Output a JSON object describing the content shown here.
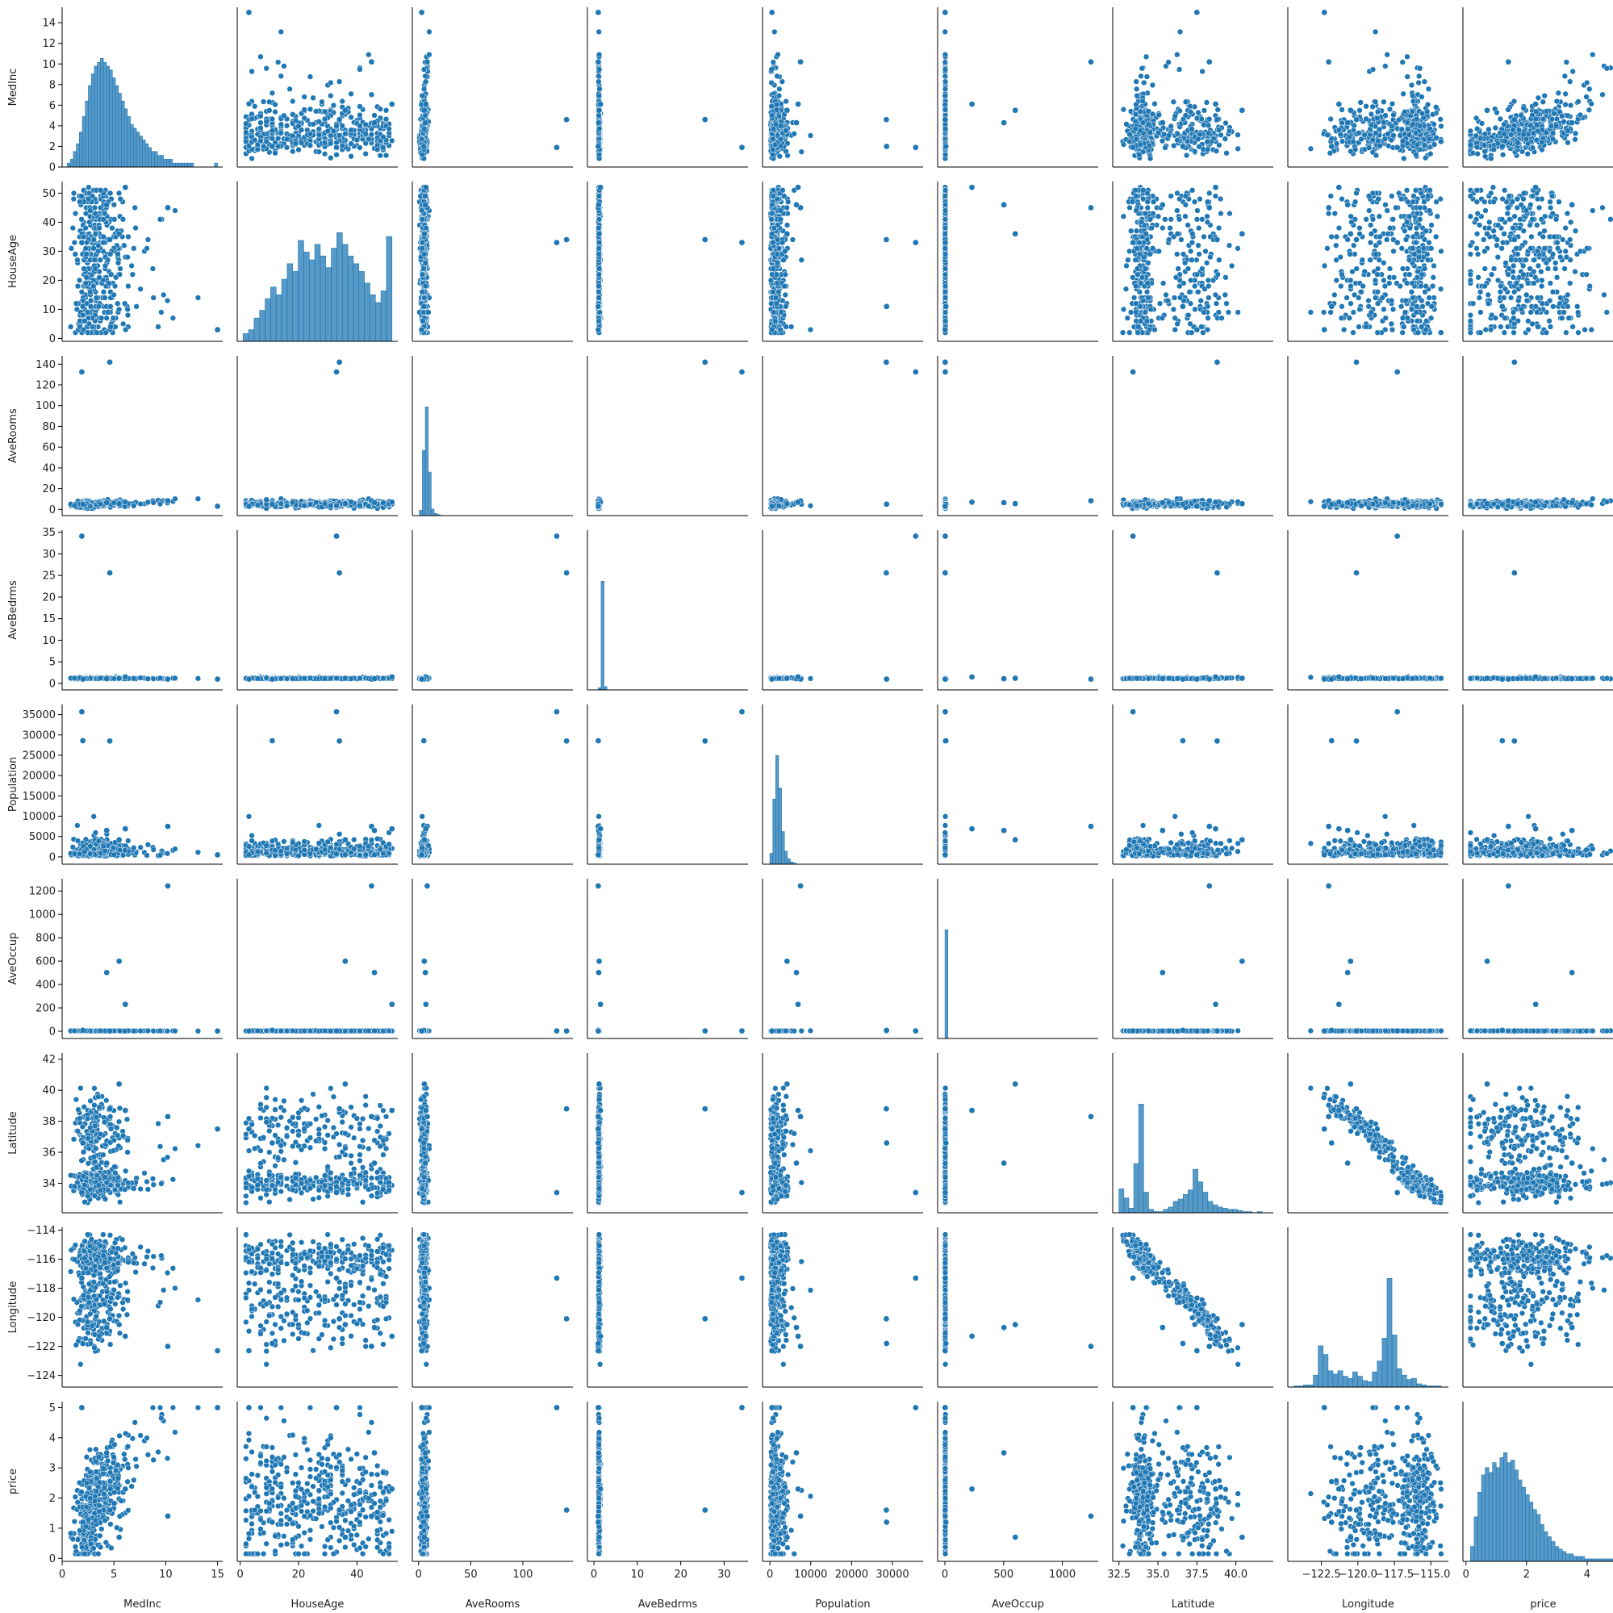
{
  "chart_data": {
    "type": "pairplot",
    "variables": [
      "MedInc",
      "HouseAge",
      "AveRooms",
      "AveBedrms",
      "Population",
      "AveOccup",
      "Latitude",
      "Longitude",
      "price"
    ],
    "marker_color": "#1f77b4",
    "diagonal": "histogram",
    "off_diagonal": "scatter",
    "grid": false,
    "axes": {
      "MedInc": {
        "range": [
          0,
          15.5
        ],
        "ticks": [
          0,
          2,
          4,
          6,
          8,
          10,
          12,
          14
        ],
        "x_ticks": [
          0,
          5,
          10,
          15
        ]
      },
      "HouseAge": {
        "range": [
          -1,
          54
        ],
        "ticks": [
          0,
          10,
          20,
          30,
          40,
          50
        ],
        "x_ticks": [
          0,
          20,
          40
        ]
      },
      "AveRooms": {
        "range": [
          -6,
          148
        ],
        "ticks": [
          0,
          20,
          40,
          60,
          80,
          100,
          120,
          140
        ],
        "x_ticks": [
          0,
          50,
          100
        ]
      },
      "AveBedrms": {
        "range": [
          -1.5,
          35.5
        ],
        "ticks": [
          0,
          5,
          10,
          15,
          20,
          25,
          30,
          35
        ],
        "x_ticks": [
          0,
          10,
          20,
          30
        ]
      },
      "Population": {
        "range": [
          -1800,
          37500
        ],
        "ticks": [
          0,
          5000,
          10000,
          15000,
          20000,
          25000,
          30000,
          35000
        ],
        "x_ticks": [
          0,
          10000,
          20000,
          30000
        ]
      },
      "AveOccup": {
        "range": [
          -62,
          1305
        ],
        "ticks": [
          0,
          200,
          400,
          600,
          800,
          1000,
          1200
        ],
        "x_ticks": [
          0,
          500,
          1000
        ]
      },
      "Latitude": {
        "range": [
          32.1,
          42.4
        ],
        "ticks": [
          34,
          36,
          38,
          40,
          42
        ],
        "x_ticks": [
          32.5,
          35.0,
          37.5,
          40.0
        ]
      },
      "Longitude": {
        "range": [
          -124.8,
          -113.8
        ],
        "ticks": [
          -124,
          -122,
          -120,
          -118,
          -116,
          -114
        ],
        "x_ticks": [
          -122.5,
          -120.0,
          -117.5,
          -115.0
        ]
      },
      "price": {
        "range": [
          -0.1,
          5.2
        ],
        "ticks": [
          0,
          1,
          2,
          3,
          4,
          5
        ],
        "x_ticks": [
          0,
          2,
          4
        ]
      }
    },
    "y_tick_labels": {
      "MedInc": [
        "0",
        "2",
        "4",
        "6",
        "8",
        "10",
        "12",
        "14"
      ],
      "HouseAge": [
        "0",
        "10",
        "20",
        "30",
        "40",
        "50"
      ],
      "AveRooms": [
        "0",
        "20",
        "40",
        "60",
        "80",
        "100",
        "120",
        "140"
      ],
      "AveBedrms": [
        "0",
        "5",
        "10",
        "15",
        "20",
        "25",
        "30",
        "35"
      ],
      "Population": [
        "0",
        "5000",
        "10000",
        "15000",
        "20000",
        "25000",
        "30000",
        "35000"
      ],
      "AveOccup": [
        "0",
        "200",
        "400",
        "600",
        "800",
        "1000",
        "1200"
      ],
      "Latitude": [
        "34",
        "36",
        "38",
        "40",
        "42"
      ],
      "Longitude": [
        "−124",
        "−122",
        "−120",
        "−118",
        "−116",
        "−114"
      ],
      "price": [
        "0",
        "1",
        "2",
        "3",
        "4",
        "5"
      ]
    },
    "x_tick_labels": {
      "MedInc": [
        "0",
        "5",
        "10",
        "15"
      ],
      "HouseAge": [
        "0",
        "20",
        "40"
      ],
      "AveRooms": [
        "0",
        "50",
        "100"
      ],
      "AveBedrms": [
        "0",
        "10",
        "20",
        "30"
      ],
      "Population": [
        "0",
        "10000",
        "20000",
        "30000"
      ],
      "AveOccup": [
        "0",
        "500",
        "1000"
      ],
      "Latitude": [
        "32.5",
        "35.0",
        "37.5",
        "40.0"
      ],
      "Longitude": [
        "−122.5",
        "−120.0",
        "−117.5",
        "−115.0"
      ],
      "price": [
        "0",
        "2",
        "4"
      ]
    },
    "histograms": {
      "MedInc": {
        "bin_start": 0.5,
        "bin_end": 15.0,
        "counts": [
          1,
          2,
          4,
          6,
          9,
          13,
          17,
          21,
          24,
          26,
          27,
          28,
          27,
          26,
          25,
          23,
          21,
          19,
          17,
          15,
          13,
          11,
          10,
          9,
          8,
          7,
          6,
          5,
          4,
          4,
          3,
          3,
          2,
          2,
          2,
          1,
          1,
          1,
          1,
          1,
          1,
          1,
          0,
          0,
          0,
          0,
          0,
          0,
          0,
          1
        ]
      },
      "HouseAge": {
        "bin_start": 1,
        "bin_end": 52,
        "counts": [
          2,
          3,
          6,
          8,
          11,
          14,
          12,
          16,
          20,
          18,
          26,
          23,
          21,
          25,
          22,
          19,
          24,
          28,
          25,
          22,
          20,
          18,
          15,
          12,
          10,
          13,
          27
        ]
      },
      "AveRooms": {
        "bin_start": 0.8,
        "bin_end": 142,
        "counts": [
          5,
          60,
          100,
          40,
          6,
          2,
          1,
          0,
          0,
          0,
          0,
          0,
          0,
          0,
          0,
          0,
          0,
          0,
          0,
          0,
          0,
          0,
          0,
          0,
          0,
          0,
          0,
          0,
          0,
          0,
          0,
          0,
          0,
          0,
          0,
          0,
          0,
          0,
          0,
          0,
          0,
          0,
          0,
          0,
          0,
          0,
          0,
          0,
          0,
          0
        ]
      },
      "AveBedrms": {
        "bin_start": 0.3,
        "bin_end": 34.1,
        "counts": [
          0,
          2,
          100,
          3,
          0,
          0,
          0,
          0,
          0,
          0,
          0,
          0,
          0,
          0,
          0,
          0,
          0,
          0,
          0,
          0,
          0,
          0,
          0,
          0,
          0,
          0,
          0,
          0,
          0,
          0,
          0,
          0,
          0,
          0,
          0,
          0,
          0,
          0,
          0,
          0,
          0,
          0,
          0,
          0,
          0,
          0,
          0,
          0,
          0,
          0
        ]
      },
      "Population": {
        "bin_start": 3,
        "bin_end": 35682,
        "counts": [
          10,
          60,
          100,
          70,
          30,
          12,
          5,
          2,
          1,
          0,
          0,
          0,
          0,
          0,
          0,
          0,
          0,
          0,
          0,
          0,
          0,
          0,
          0,
          0,
          0,
          0,
          0,
          0,
          0,
          0,
          0,
          0,
          0,
          0,
          0,
          0,
          0,
          0,
          0,
          0,
          0,
          0,
          0,
          0,
          0,
          0,
          0,
          0,
          0,
          0
        ]
      },
      "AveOccup": {
        "bin_start": 0.7,
        "bin_end": 1243,
        "counts": [
          100,
          0,
          0,
          0,
          0,
          0,
          0,
          0,
          0,
          0,
          0,
          0,
          0,
          0,
          0,
          0,
          0,
          0,
          0,
          0,
          0,
          0,
          0,
          0,
          0,
          0,
          0,
          0,
          0,
          0,
          0,
          0,
          0,
          0,
          0,
          0,
          0,
          0,
          0,
          0,
          0,
          0,
          0,
          0,
          0,
          0,
          0,
          0,
          0,
          0
        ]
      },
      "Latitude": {
        "bin_start": 32.5,
        "bin_end": 42.0,
        "counts": [
          21,
          13,
          4,
          43,
          95,
          18,
          3,
          1,
          1,
          3,
          5,
          10,
          12,
          16,
          20,
          38,
          27,
          18,
          10,
          7,
          5,
          4,
          3,
          3,
          2,
          1,
          1,
          0,
          1,
          0
        ]
      },
      "Longitude": {
        "bin_start": -124.4,
        "bin_end": -114.3,
        "counts": [
          1,
          1,
          2,
          2,
          11,
          38,
          30,
          15,
          12,
          15,
          10,
          8,
          14,
          10,
          6,
          5,
          14,
          24,
          45,
          100,
          48,
          17,
          11,
          7,
          8,
          3,
          2,
          1,
          1,
          1
        ]
      },
      "price": {
        "bin_start": 0.15,
        "bin_end": 5.0,
        "counts": [
          6,
          18,
          28,
          35,
          38,
          36,
          40,
          38,
          42,
          44,
          40,
          41,
          37,
          33,
          30,
          27,
          24,
          21,
          19,
          15,
          12,
          10,
          8,
          6,
          5,
          4,
          3,
          3,
          2,
          2,
          2,
          1,
          1,
          1,
          1,
          1,
          1,
          1,
          1,
          20
        ]
      }
    },
    "outliers": [
      {
        "MedInc": 4.6,
        "HouseAge": 34,
        "AveRooms": 141.9,
        "AveBedrms": 25.6,
        "Population": 28500,
        "AveOccup": 2.5,
        "Latitude": 38.8,
        "Longitude": -120.1,
        "price": 1.6
      },
      {
        "MedInc": 1.9,
        "HouseAge": 33,
        "AveRooms": 132.5,
        "AveBedrms": 34.1,
        "Population": 35682,
        "AveOccup": 3.0,
        "Latitude": 33.4,
        "Longitude": -117.3,
        "price": 5.0
      },
      {
        "MedInc": 10.2,
        "HouseAge": 45,
        "AveRooms": 8.3,
        "AveBedrms": 1.0,
        "Population": 7500,
        "AveOccup": 1243,
        "Latitude": 38.3,
        "Longitude": -122.0,
        "price": 1.4
      },
      {
        "MedInc": 5.5,
        "HouseAge": 36,
        "AveRooms": 5.5,
        "AveBedrms": 1.2,
        "Population": 4200,
        "AveOccup": 599,
        "Latitude": 40.4,
        "Longitude": -120.5,
        "price": 0.7
      },
      {
        "MedInc": 4.3,
        "HouseAge": 46,
        "AveRooms": 6.5,
        "AveBedrms": 1.1,
        "Population": 6500,
        "AveOccup": 502,
        "Latitude": 35.3,
        "Longitude": -120.7,
        "price": 3.5
      },
      {
        "MedInc": 6.1,
        "HouseAge": 52,
        "AveRooms": 7.0,
        "AveBedrms": 1.5,
        "Population": 6900,
        "AveOccup": 230,
        "Latitude": 38.7,
        "Longitude": -121.3,
        "price": 2.3
      },
      {
        "MedInc": 2.0,
        "HouseAge": 11,
        "AveRooms": 5.0,
        "AveBedrms": 1.0,
        "Population": 28566,
        "AveOccup": 8.0,
        "Latitude": 36.6,
        "Longitude": -121.8,
        "price": 1.2
      },
      {
        "MedInc": 15.0,
        "HouseAge": 3,
        "AveRooms": 3.0,
        "AveBedrms": 1.0,
        "Population": 500,
        "AveOccup": 2.0,
        "Latitude": 37.5,
        "Longitude": -122.3,
        "price": 5.0
      }
    ]
  }
}
